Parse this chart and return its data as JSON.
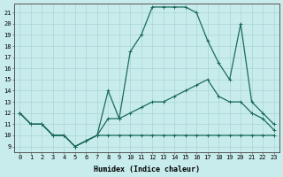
{
  "title": "",
  "xlabel": "Humidex (Indice chaleur)",
  "bg_color": "#c8ecec",
  "grid_color": "#b0d8d8",
  "line_color": "#1a6b5a",
  "x_ticks": [
    0,
    1,
    2,
    3,
    4,
    5,
    6,
    7,
    8,
    9,
    10,
    11,
    12,
    13,
    14,
    15,
    16,
    17,
    18,
    19,
    20,
    21,
    22,
    23
  ],
  "y_ticks": [
    9,
    10,
    11,
    12,
    13,
    14,
    15,
    16,
    17,
    18,
    19,
    20,
    21
  ],
  "xlim": [
    -0.5,
    23.5
  ],
  "ylim": [
    8.5,
    21.8
  ],
  "series1_y": [
    12,
    11,
    11,
    10,
    10,
    9,
    9.5,
    10,
    10,
    10,
    10,
    10,
    10,
    10,
    10,
    10,
    10,
    10,
    10,
    10,
    10,
    10,
    10,
    10
  ],
  "series2_y": [
    12,
    11,
    11,
    10,
    10,
    9,
    9.5,
    10,
    11.5,
    11.5,
    12,
    12.5,
    13,
    13,
    13.5,
    14,
    14.5,
    15,
    13.5,
    13,
    13,
    12,
    11.5,
    10.5
  ],
  "series3_y": [
    12,
    11,
    11,
    10,
    10,
    9,
    9.5,
    10,
    14,
    11.5,
    17.5,
    19,
    21.5,
    21.5,
    21.5,
    21.5,
    21,
    18.5,
    16.5,
    15,
    20,
    13,
    12,
    11
  ]
}
